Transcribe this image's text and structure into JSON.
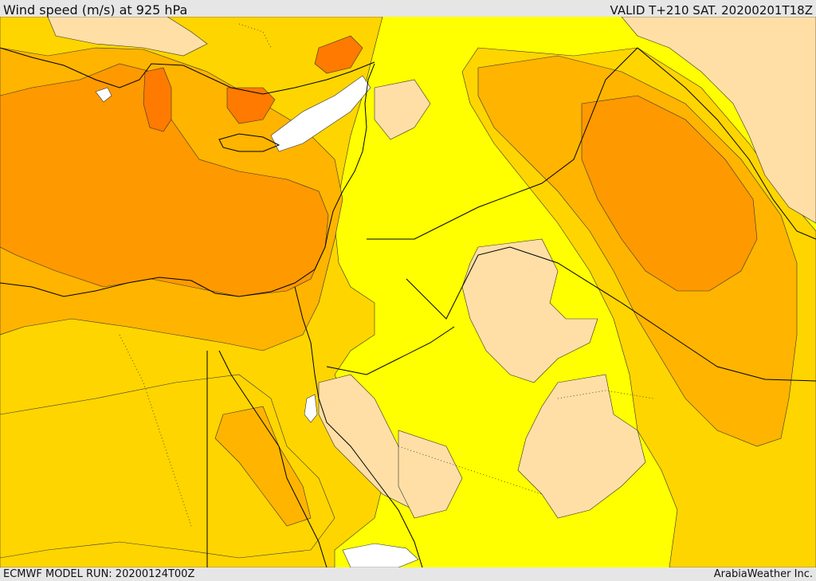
{
  "header": {
    "title": "Wind speed (m/s) at 925 hPa",
    "valid": "VALID T+210 SAT. 20200201T18Z"
  },
  "footer": {
    "model_run": "ECMWF MODEL RUN: 20200124T00Z",
    "credit": "ArabiaWeather Inc."
  },
  "map": {
    "colors": {
      "calm_white": "#ffffff",
      "light_beige": "#ffdfa6",
      "yellow": "#ffff00",
      "gold": "#ffd500",
      "amber": "#ffb400",
      "orange": "#ff9900",
      "dark_orange": "#ff7a00",
      "red_orange": "#f05a10",
      "border_line": "#000000"
    }
  }
}
